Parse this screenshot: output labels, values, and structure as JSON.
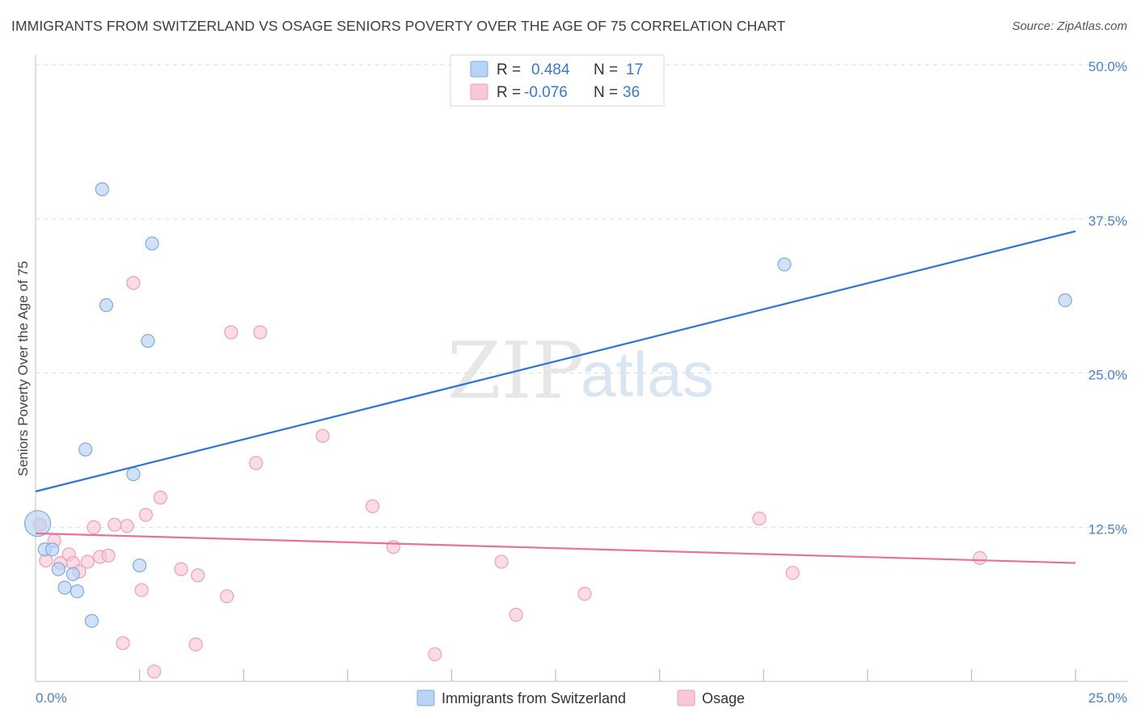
{
  "title": "IMMIGRANTS FROM SWITZERLAND VS OSAGE SENIORS POVERTY OVER THE AGE OF 75 CORRELATION CHART",
  "source": "Source: ZipAtlas.com",
  "watermark": {
    "zip": "ZIP",
    "atlas": "atlas"
  },
  "colors": {
    "blue_fill": "#b8d3f3",
    "blue_stroke": "#7eaae0",
    "blue_line": "#2d74d4",
    "pink_fill": "#f8c8d8",
    "pink_stroke": "#eea0ba",
    "pink_line": "#e8709a",
    "tick": "#4a7fd0",
    "grid": "#dddddd"
  },
  "legend": {
    "blue": {
      "r_label": "R =",
      "r_value": "0.484",
      "n_label": "N =",
      "n_value": "17"
    },
    "pink": {
      "r_label": "R =",
      "r_value": "-0.076",
      "n_label": "N =",
      "n_value": "36"
    }
  },
  "chart_data": {
    "type": "scatter",
    "title": "IMMIGRANTS FROM SWITZERLAND VS OSAGE SENIORS POVERTY OVER THE AGE OF 75 CORRELATION CHART",
    "xlabel": "",
    "ylabel": "Seniors Poverty Over the Age of 75",
    "xlim": [
      0,
      25
    ],
    "ylim": [
      0,
      50
    ],
    "x_tick_labels": [
      "0.0%",
      "25.0%"
    ],
    "y_ticks": [
      12.5,
      25.0,
      37.5,
      50.0
    ],
    "y_tick_labels": [
      "12.5%",
      "25.0%",
      "37.5%",
      "50.0%"
    ],
    "series": [
      {
        "name": "Immigrants from Switzerland",
        "color": "blue",
        "points": [
          {
            "x": 0.05,
            "y": 12.8,
            "big": true
          },
          {
            "x": 0.22,
            "y": 10.7
          },
          {
            "x": 0.4,
            "y": 10.7
          },
          {
            "x": 0.55,
            "y": 9.1
          },
          {
            "x": 0.7,
            "y": 7.6
          },
          {
            "x": 0.9,
            "y": 8.7
          },
          {
            "x": 1.0,
            "y": 7.3
          },
          {
            "x": 1.2,
            "y": 18.8
          },
          {
            "x": 1.35,
            "y": 4.9
          },
          {
            "x": 1.6,
            "y": 39.9
          },
          {
            "x": 1.7,
            "y": 30.5
          },
          {
            "x": 2.35,
            "y": 16.8
          },
          {
            "x": 2.5,
            "y": 9.4
          },
          {
            "x": 2.7,
            "y": 27.6
          },
          {
            "x": 2.8,
            "y": 35.5
          },
          {
            "x": 18.0,
            "y": 33.8
          },
          {
            "x": 24.75,
            "y": 30.9
          }
        ],
        "trend": {
          "x": [
            0,
            25
          ],
          "y": [
            15.4,
            36.5
          ]
        }
      },
      {
        "name": "Osage",
        "color": "pink",
        "points": [
          {
            "x": 0.1,
            "y": 12.7
          },
          {
            "x": 0.25,
            "y": 9.8
          },
          {
            "x": 0.45,
            "y": 11.4
          },
          {
            "x": 0.6,
            "y": 9.6
          },
          {
            "x": 0.8,
            "y": 10.3
          },
          {
            "x": 0.9,
            "y": 9.6
          },
          {
            "x": 1.05,
            "y": 8.9
          },
          {
            "x": 1.25,
            "y": 9.7
          },
          {
            "x": 1.4,
            "y": 12.5
          },
          {
            "x": 1.55,
            "y": 10.1
          },
          {
            "x": 1.75,
            "y": 10.2
          },
          {
            "x": 1.9,
            "y": 12.7
          },
          {
            "x": 2.1,
            "y": 3.1
          },
          {
            "x": 2.2,
            "y": 12.6
          },
          {
            "x": 2.35,
            "y": 32.3
          },
          {
            "x": 2.55,
            "y": 7.4
          },
          {
            "x": 2.65,
            "y": 13.5
          },
          {
            "x": 2.85,
            "y": 0.8
          },
          {
            "x": 3.0,
            "y": 14.9
          },
          {
            "x": 3.5,
            "y": 9.1
          },
          {
            "x": 3.85,
            "y": 3.0
          },
          {
            "x": 3.9,
            "y": 8.6
          },
          {
            "x": 4.6,
            "y": 6.9
          },
          {
            "x": 4.7,
            "y": 28.3
          },
          {
            "x": 5.3,
            "y": 17.7
          },
          {
            "x": 5.4,
            "y": 28.3
          },
          {
            "x": 6.9,
            "y": 19.9
          },
          {
            "x": 8.1,
            "y": 14.2
          },
          {
            "x": 8.6,
            "y": 10.9
          },
          {
            "x": 9.6,
            "y": 2.2
          },
          {
            "x": 11.2,
            "y": 9.7
          },
          {
            "x": 11.55,
            "y": 5.4
          },
          {
            "x": 13.2,
            "y": 7.1
          },
          {
            "x": 17.4,
            "y": 13.2
          },
          {
            "x": 18.2,
            "y": 8.8
          },
          {
            "x": 22.7,
            "y": 10.0
          }
        ],
        "trend": {
          "x": [
            0,
            25
          ],
          "y": [
            12.0,
            9.6
          ]
        }
      }
    ]
  }
}
